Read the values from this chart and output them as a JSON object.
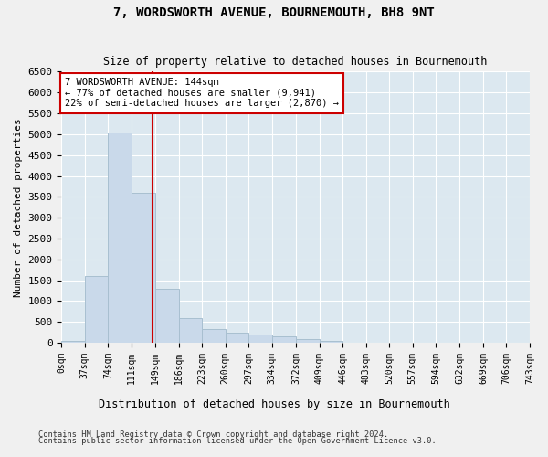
{
  "title": "7, WORDSWORTH AVENUE, BOURNEMOUTH, BH8 9NT",
  "subtitle": "Size of property relative to detached houses in Bournemouth",
  "xlabel": "Distribution of detached houses by size in Bournemouth",
  "ylabel": "Number of detached properties",
  "bar_color": "#c9d9ea",
  "bar_edge_color": "#a8bfd0",
  "background_color": "#dce8f0",
  "fig_background": "#f0f0f0",
  "property_size": 144,
  "annotation_text": "7 WORDSWORTH AVENUE: 144sqm\n← 77% of detached houses are smaller (9,941)\n22% of semi-detached houses are larger (2,870) →",
  "annotation_box_facecolor": "#ffffff",
  "annotation_border_color": "#cc0000",
  "vline_color": "#cc0000",
  "footer_line1": "Contains HM Land Registry data © Crown copyright and database right 2024.",
  "footer_line2": "Contains public sector information licensed under the Open Government Licence v3.0.",
  "bin_edges": [
    0,
    37,
    74,
    111,
    149,
    186,
    223,
    260,
    297,
    334,
    372,
    409,
    446,
    483,
    520,
    557,
    594,
    632,
    669,
    706,
    743
  ],
  "bin_counts": [
    45,
    1600,
    5050,
    3600,
    1300,
    600,
    340,
    250,
    195,
    155,
    80,
    55,
    10,
    0,
    0,
    0,
    0,
    0,
    0,
    0
  ],
  "ylim": [
    0,
    6500
  ],
  "yticks": [
    0,
    500,
    1000,
    1500,
    2000,
    2500,
    3000,
    3500,
    4000,
    4500,
    5000,
    5500,
    6000,
    6500
  ]
}
